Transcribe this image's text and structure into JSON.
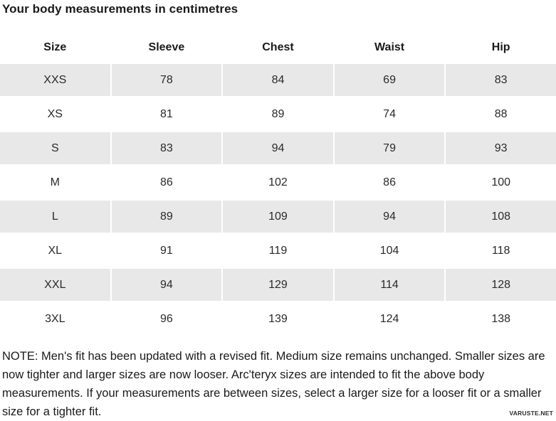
{
  "page": {
    "title": "Your body measurements in centimetres",
    "watermark": "VARUSTE.NET"
  },
  "colors": {
    "row_alt_bg": "#e8e8e8",
    "text": "#1a1a1a"
  },
  "table": {
    "columns": [
      "Size",
      "Sleeve",
      "Chest",
      "Waist",
      "Hip"
    ],
    "rows": [
      {
        "size": "XXS",
        "sleeve": "78",
        "chest": "84",
        "waist": "69",
        "hip": "83"
      },
      {
        "size": "XS",
        "sleeve": "81",
        "chest": "89",
        "waist": "74",
        "hip": "88"
      },
      {
        "size": "S",
        "sleeve": "83",
        "chest": "94",
        "waist": "79",
        "hip": "93"
      },
      {
        "size": "M",
        "sleeve": "86",
        "chest": "102",
        "waist": "86",
        "hip": "100"
      },
      {
        "size": "L",
        "sleeve": "89",
        "chest": "109",
        "waist": "94",
        "hip": "108"
      },
      {
        "size": "XL",
        "sleeve": "91",
        "chest": "119",
        "waist": "104",
        "hip": "118"
      },
      {
        "size": "XXL",
        "sleeve": "94",
        "chest": "129",
        "waist": "114",
        "hip": "128"
      },
      {
        "size": "3XL",
        "sleeve": "96",
        "chest": "139",
        "waist": "124",
        "hip": "138"
      }
    ]
  },
  "note": "NOTE: Men's fit has been updated with a revised fit. Medium size remains unchanged. Smaller sizes are now tighter and larger sizes are now looser. Arc'teryx sizes are intended to fit the above body measurements. If your measurements are between sizes, select a larger size for a looser fit or a smaller size for a tighter fit."
}
